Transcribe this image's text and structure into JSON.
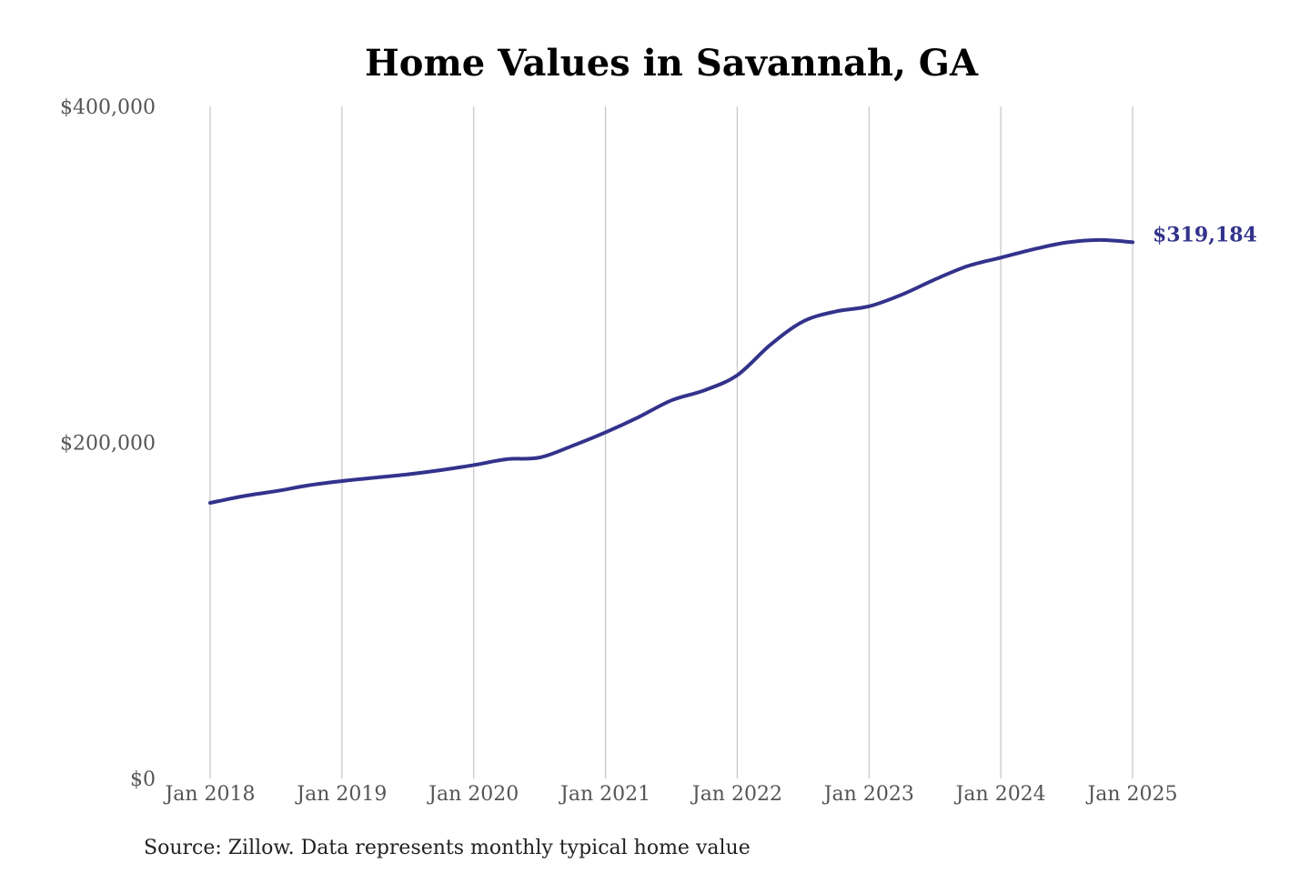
{
  "chart_data": {
    "type": "line",
    "title": "Home Values in Savannah, GA",
    "xlabel": "",
    "ylabel": "",
    "x_ticks": [
      "Jan 2018",
      "Jan 2019",
      "Jan 2020",
      "Jan 2021",
      "Jan 2022",
      "Jan 2023",
      "Jan 2024",
      "Jan 2025"
    ],
    "y_ticks": [
      "$0",
      "$200,000",
      "$400,000"
    ],
    "y_tick_values": [
      0,
      200000,
      400000
    ],
    "ylim": [
      0,
      400000
    ],
    "xlim": [
      "2018-01",
      "2025-01"
    ],
    "grid": {
      "vertical": true,
      "horizontal": false
    },
    "series": [
      {
        "color": "#33338c",
        "end_label": "$319,184",
        "points": [
          [
            "2018-01",
            164000
          ],
          [
            "2018-04",
            168000
          ],
          [
            "2018-07",
            171000
          ],
          [
            "2018-10",
            174500
          ],
          [
            "2019-01",
            177000
          ],
          [
            "2019-04",
            179000
          ],
          [
            "2019-07",
            181000
          ],
          [
            "2019-10",
            183500
          ],
          [
            "2020-01",
            186500
          ],
          [
            "2020-04",
            190000
          ],
          [
            "2020-07",
            191000
          ],
          [
            "2020-10",
            198000
          ],
          [
            "2021-01",
            206000
          ],
          [
            "2021-04",
            215000
          ],
          [
            "2021-07",
            225000
          ],
          [
            "2021-10",
            231000
          ],
          [
            "2022-01",
            240000
          ],
          [
            "2022-04",
            258000
          ],
          [
            "2022-07",
            272000
          ],
          [
            "2022-10",
            278000
          ],
          [
            "2023-01",
            281000
          ],
          [
            "2023-04",
            288000
          ],
          [
            "2023-07",
            297000
          ],
          [
            "2023-10",
            305000
          ],
          [
            "2024-01",
            310000
          ],
          [
            "2024-04",
            315000
          ],
          [
            "2024-07",
            319000
          ],
          [
            "2024-10",
            320500
          ],
          [
            "2025-01",
            319184
          ]
        ]
      }
    ],
    "source": "Source: Zillow. Data represents monthly typical home value"
  }
}
